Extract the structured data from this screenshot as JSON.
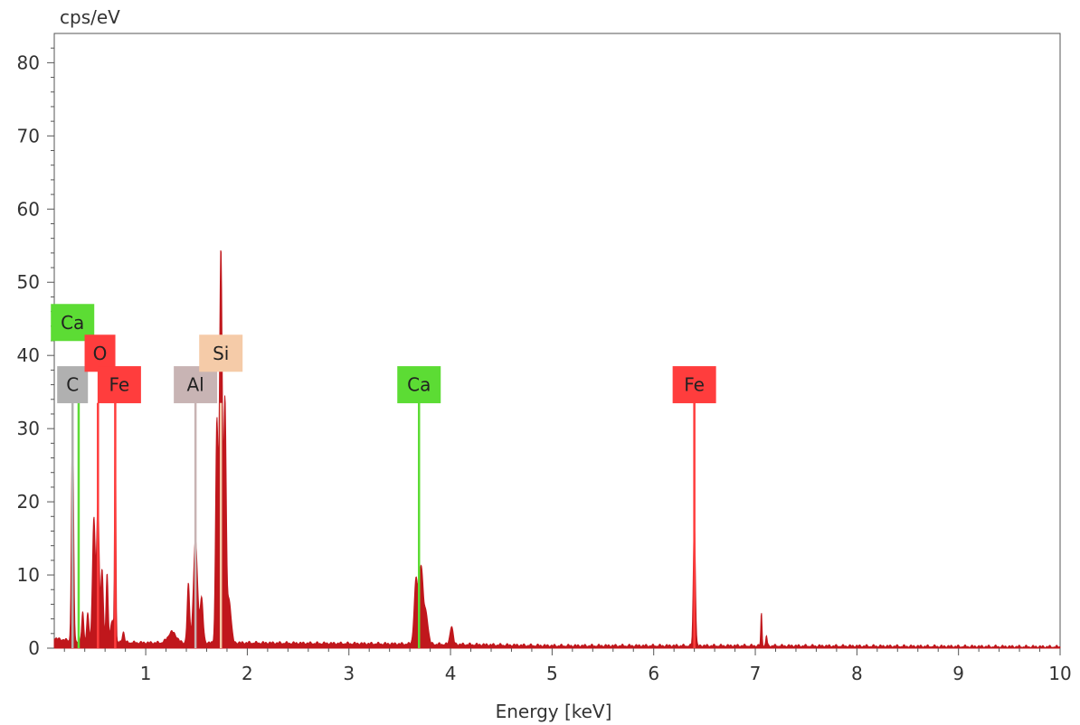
{
  "chart_data": {
    "type": "line",
    "title": "",
    "xlabel": "Energy [keV]",
    "ylabel": "cps/eV",
    "xlim": [
      0.1,
      10.0
    ],
    "ylim": [
      0,
      84
    ],
    "x_ticks": [
      1,
      2,
      3,
      4,
      5,
      6,
      7,
      8,
      9,
      10
    ],
    "y_ticks": [
      0,
      10,
      20,
      30,
      40,
      50,
      60,
      70,
      80
    ],
    "grid": false,
    "legend": "none",
    "series": [
      {
        "color": "#c0171c",
        "peaks": [
          {
            "x": 0.28,
            "height": 31,
            "width": 0.01
          },
          {
            "x": 0.38,
            "height": 4,
            "width": 0.01
          },
          {
            "x": 0.43,
            "height": 4,
            "width": 0.01
          },
          {
            "x": 0.49,
            "height": 17,
            "width": 0.014
          },
          {
            "x": 0.53,
            "height": 19,
            "width": 0.012
          },
          {
            "x": 0.57,
            "height": 10,
            "width": 0.012
          },
          {
            "x": 0.62,
            "height": 9.5,
            "width": 0.01
          },
          {
            "x": 0.67,
            "height": 3,
            "width": 0.015
          },
          {
            "x": 0.7,
            "height": 33,
            "width": 0.006
          },
          {
            "x": 0.78,
            "height": 1.5,
            "width": 0.01
          },
          {
            "x": 1.26,
            "height": 1.5,
            "width": 0.04
          },
          {
            "x": 1.42,
            "height": 8,
            "width": 0.012
          },
          {
            "x": 1.49,
            "height": 14,
            "width": 0.02
          },
          {
            "x": 1.55,
            "height": 6,
            "width": 0.015
          },
          {
            "x": 1.7,
            "height": 30,
            "width": 0.012
          },
          {
            "x": 1.74,
            "height": 54,
            "width": 0.014
          },
          {
            "x": 1.78,
            "height": 32,
            "width": 0.012
          },
          {
            "x": 1.82,
            "height": 6,
            "width": 0.02
          },
          {
            "x": 3.66,
            "height": 8.5,
            "width": 0.018
          },
          {
            "x": 3.71,
            "height": 10.5,
            "width": 0.02
          },
          {
            "x": 3.76,
            "height": 4,
            "width": 0.02
          },
          {
            "x": 4.01,
            "height": 2.5,
            "width": 0.015
          },
          {
            "x": 6.4,
            "height": 17,
            "width": 0.01
          },
          {
            "x": 7.06,
            "height": 4.5,
            "width": 0.006
          },
          {
            "x": 7.11,
            "height": 1.5,
            "width": 0.006
          }
        ],
        "background": [
          [
            0.1,
            1.2
          ],
          [
            0.3,
            0.8
          ],
          [
            1.0,
            0.6
          ],
          [
            2.0,
            0.6
          ],
          [
            3.0,
            0.5
          ],
          [
            4.0,
            0.4
          ],
          [
            5.0,
            0.2
          ],
          [
            6.0,
            0.2
          ],
          [
            7.0,
            0.2
          ],
          [
            8.0,
            0.15
          ],
          [
            9.0,
            0.1
          ],
          [
            10.0,
            0.05
          ]
        ]
      }
    ],
    "element_markers": [
      {
        "element": "C",
        "x": 0.28,
        "height": 33.5,
        "color": "#b0b0b0",
        "label_x": 0.28,
        "label_y": 36.0
      },
      {
        "element": "Ca",
        "x": 0.34,
        "height": 33.5,
        "color": "#5cdc34",
        "label_x": 0.28,
        "label_y": 44.5
      },
      {
        "element": "O",
        "x": 0.53,
        "height": 33.5,
        "color": "#ff3d3d",
        "label_x": 0.55,
        "label_y": 40.3
      },
      {
        "element": "Fe",
        "x": 0.7,
        "height": 33.5,
        "color": "#ff3d3d",
        "label_x": 0.74,
        "label_y": 36.0
      },
      {
        "element": "Al",
        "x": 1.49,
        "height": 33.5,
        "color": "#c8b4b4",
        "label_x": 1.49,
        "label_y": 36.0
      },
      {
        "element": "Si",
        "x": 1.74,
        "height": 33.5,
        "color": "#f5cba8",
        "label_x": 1.74,
        "label_y": 40.3
      },
      {
        "element": "Ca",
        "x": 3.69,
        "height": 33.5,
        "color": "#5cdc34",
        "label_x": 3.69,
        "label_y": 36.0
      },
      {
        "element": "Fe",
        "x": 6.4,
        "height": 33.5,
        "color": "#ff3d3d",
        "label_x": 6.4,
        "label_y": 36.0
      }
    ]
  }
}
